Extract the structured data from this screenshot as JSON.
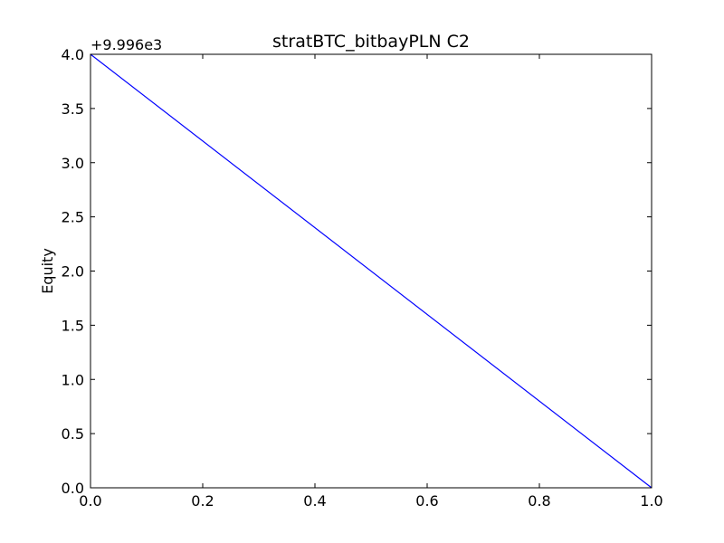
{
  "chart_data": {
    "type": "line",
    "title": "stratBTC_bitbayPLN C2",
    "xlabel": "",
    "ylabel": "Equity",
    "y_offset_label": "+9.996e3",
    "xlim": [
      0.0,
      1.0
    ],
    "ylim": [
      0.0,
      4.0
    ],
    "x_ticks": [
      "0.0",
      "0.2",
      "0.4",
      "0.6",
      "0.8",
      "1.0"
    ],
    "y_ticks": [
      "0.0",
      "0.5",
      "1.0",
      "1.5",
      "2.0",
      "2.5",
      "3.0",
      "3.5",
      "4.0"
    ],
    "grid": false,
    "series": [
      {
        "color": "#0000ff",
        "x": [
          0.0,
          1.0
        ],
        "y": [
          4.0,
          0.0
        ]
      }
    ]
  }
}
